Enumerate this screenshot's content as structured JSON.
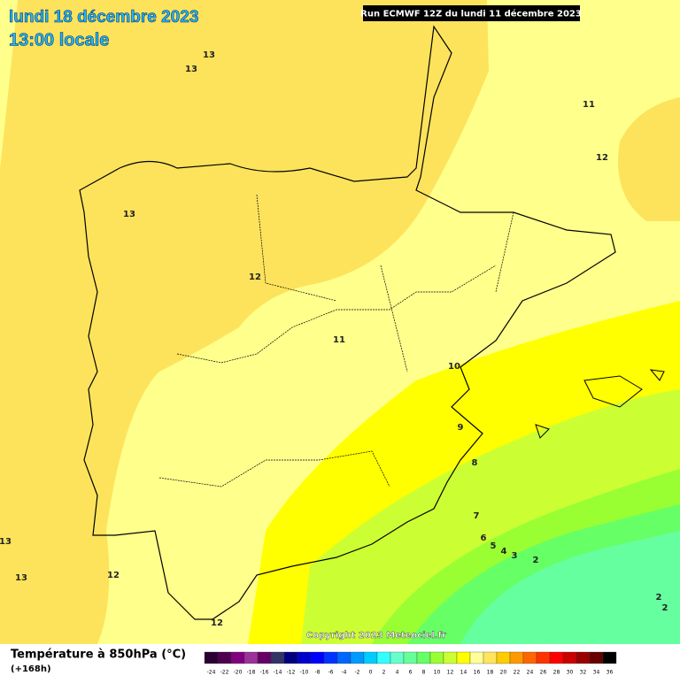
{
  "header": {
    "date": "lundi 18 décembre 2023",
    "time": "13:00 locale",
    "run": "Run ECMWF 12Z du lundi 11 décembre 2023"
  },
  "map": {
    "contours": [
      "13",
      "13",
      "13",
      "13",
      "13",
      "12",
      "12",
      "12",
      "12",
      "11",
      "11",
      "10",
      "9",
      "8",
      "7",
      "6",
      "5",
      "4",
      "3",
      "2",
      "2",
      "2"
    ]
  },
  "footer": {
    "title": "Température à 850hPa (°C)",
    "lead": "(+168h)",
    "copyright": "Copyright 2023 Meteociel.fr",
    "legend": [
      {
        "label": -24,
        "color": "#2b0033"
      },
      {
        "label": -22,
        "color": "#4d004d"
      },
      {
        "label": -20,
        "color": "#800080"
      },
      {
        "label": -18,
        "color": "#993399"
      },
      {
        "label": -16,
        "color": "#660066"
      },
      {
        "label": -14,
        "color": "#333366"
      },
      {
        "label": -12,
        "color": "#000080"
      },
      {
        "label": -10,
        "color": "#0000cc"
      },
      {
        "label": -8,
        "color": "#0000ff"
      },
      {
        "label": -6,
        "color": "#0033ff"
      },
      {
        "label": -4,
        "color": "#0066ff"
      },
      {
        "label": -2,
        "color": "#0099ff"
      },
      {
        "label": 0,
        "color": "#00ccff"
      },
      {
        "label": 2,
        "color": "#33ffff"
      },
      {
        "label": 4,
        "color": "#66ffcc"
      },
      {
        "label": 6,
        "color": "#66ff99"
      },
      {
        "label": 8,
        "color": "#66ff66"
      },
      {
        "label": 10,
        "color": "#99ff33"
      },
      {
        "label": 12,
        "color": "#ccff33"
      },
      {
        "label": 14,
        "color": "#ffff00"
      },
      {
        "label": 16,
        "color": "#ffff99"
      },
      {
        "label": 18,
        "color": "#ffe45c"
      },
      {
        "label": 20,
        "color": "#ffcc00"
      },
      {
        "label": 22,
        "color": "#ff9900"
      },
      {
        "label": 24,
        "color": "#ff6600"
      },
      {
        "label": 26,
        "color": "#ff3300"
      },
      {
        "label": 28,
        "color": "#ff0000"
      },
      {
        "label": 30,
        "color": "#cc0000"
      },
      {
        "label": 32,
        "color": "#990000"
      },
      {
        "label": 34,
        "color": "#660000"
      },
      {
        "label": 36,
        "color": "#000000"
      }
    ]
  }
}
